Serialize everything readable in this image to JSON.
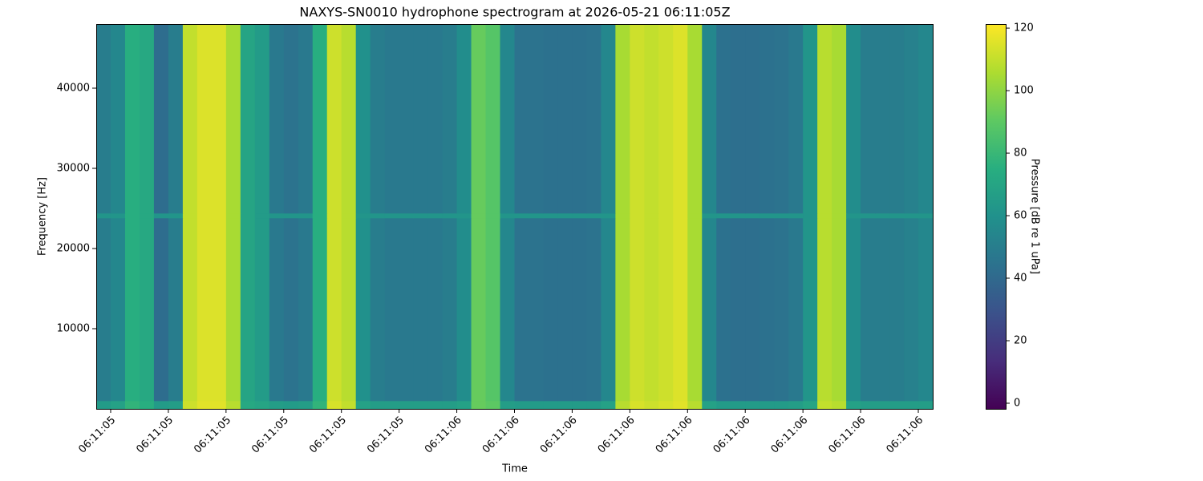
{
  "chart_data": {
    "type": "heatmap",
    "title": "NAXYS-SN0010 hydrophone spectrogram at 2026-05-21 06:11:05Z",
    "x_label": "Time",
    "y_label": "Frequency [Hz]",
    "colorbar_label": "Pressure [dB re 1 uPa]",
    "colormap": "viridis",
    "x_bins": [
      5.375,
      5.4,
      5.425,
      5.45,
      5.475,
      5.5,
      5.525,
      5.55,
      5.575,
      5.6,
      5.625,
      5.65,
      5.675,
      5.7,
      5.725,
      5.75,
      5.775,
      5.8,
      5.825,
      5.85,
      5.875,
      5.9,
      5.925,
      5.95,
      5.975,
      6,
      6.025,
      6.05,
      6.075,
      6.1,
      6.125,
      6.15,
      6.175,
      6.2,
      6.225,
      6.25,
      6.275,
      6.3,
      6.325,
      6.35,
      6.375,
      6.4,
      6.425,
      6.45,
      6.475,
      6.5,
      6.525,
      6.55,
      6.575,
      6.6,
      6.625,
      6.65,
      6.675,
      6.7,
      6.725,
      6.75,
      6.775,
      6.8,
      6.825
    ],
    "y_bins": [
      0,
      1000,
      23800,
      24400,
      48000
    ],
    "z": [
      [
        65,
        68,
        78,
        75,
        65,
        66,
        112,
        116,
        116,
        108,
        72,
        70,
        66,
        65,
        66,
        78,
        114,
        110,
        68,
        66,
        66,
        66,
        66,
        66,
        66,
        68,
        92,
        90,
        66,
        65,
        65,
        65,
        65,
        65,
        65,
        68,
        108,
        114,
        112,
        114,
        116,
        108,
        68,
        65,
        65,
        65,
        65,
        65,
        66,
        70,
        110,
        108,
        68,
        66,
        66,
        66,
        66,
        66
      ],
      [
        50,
        55,
        75,
        72,
        42,
        50,
        110,
        115,
        115,
        105,
        70,
        65,
        48,
        45,
        48,
        75,
        112,
        108,
        60,
        50,
        48,
        48,
        48,
        48,
        50,
        58,
        92,
        88,
        55,
        45,
        45,
        44,
        44,
        44,
        45,
        55,
        105,
        112,
        110,
        112,
        115,
        105,
        55,
        44,
        43,
        43,
        44,
        45,
        48,
        62,
        108,
        105,
        58,
        50,
        50,
        50,
        52,
        55
      ],
      [
        62,
        62,
        75,
        72,
        62,
        62,
        110,
        115,
        115,
        105,
        70,
        65,
        62,
        62,
        62,
        75,
        112,
        108,
        62,
        62,
        62,
        62,
        62,
        62,
        62,
        62,
        92,
        88,
        62,
        62,
        62,
        62,
        62,
        62,
        62,
        62,
        105,
        112,
        110,
        112,
        115,
        105,
        62,
        62,
        62,
        62,
        62,
        62,
        62,
        62,
        108,
        105,
        62,
        62,
        62,
        62,
        62,
        62
      ],
      [
        50,
        55,
        75,
        72,
        42,
        50,
        110,
        115,
        115,
        105,
        70,
        65,
        48,
        45,
        48,
        75,
        112,
        108,
        60,
        50,
        48,
        48,
        48,
        48,
        50,
        58,
        92,
        88,
        55,
        45,
        45,
        44,
        44,
        44,
        45,
        55,
        105,
        112,
        110,
        112,
        115,
        105,
        55,
        44,
        43,
        43,
        44,
        45,
        48,
        62,
        108,
        105,
        58,
        50,
        50,
        50,
        52,
        55
      ]
    ],
    "xlim": [
      5.375,
      6.825
    ],
    "xticks": [
      {
        "value": 5.4,
        "label": "06:11:05"
      },
      {
        "value": 5.5,
        "label": "06:11:05"
      },
      {
        "value": 5.6,
        "label": "06:11:05"
      },
      {
        "value": 5.7,
        "label": "06:11:05"
      },
      {
        "value": 5.8,
        "label": "06:11:05"
      },
      {
        "value": 5.9,
        "label": "06:11:05"
      },
      {
        "value": 6.0,
        "label": "06:11:06"
      },
      {
        "value": 6.1,
        "label": "06:11:06"
      },
      {
        "value": 6.2,
        "label": "06:11:06"
      },
      {
        "value": 6.3,
        "label": "06:11:06"
      },
      {
        "value": 6.4,
        "label": "06:11:06"
      },
      {
        "value": 6.5,
        "label": "06:11:06"
      },
      {
        "value": 6.6,
        "label": "06:11:06"
      },
      {
        "value": 6.7,
        "label": "06:11:06"
      },
      {
        "value": 6.8,
        "label": "06:11:06"
      }
    ],
    "ylim": [
      0,
      48000
    ],
    "yticks": [
      10000,
      20000,
      30000,
      40000
    ],
    "zlim": [
      -1.8,
      121.3
    ],
    "zticks": [
      0,
      20,
      40,
      60,
      80,
      100,
      120
    ]
  }
}
